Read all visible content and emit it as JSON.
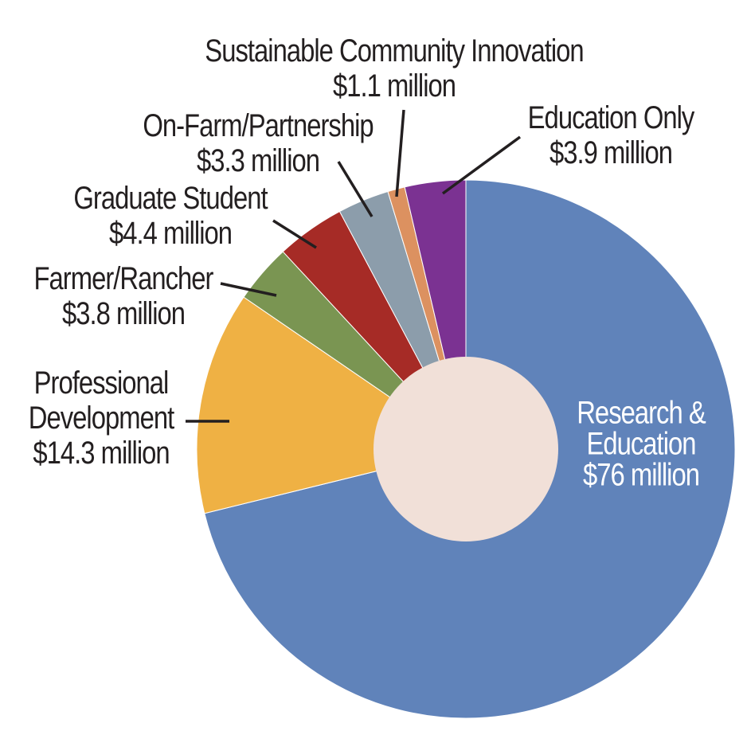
{
  "chart_data": {
    "type": "pie",
    "subtype": "donut",
    "title": "",
    "legend": "none",
    "background_color": "#ffffff",
    "text_color": "#231f20",
    "inside_label_text_color": "#ffffff",
    "donut_hole_color": "#f1e0d8",
    "leader_line_color": "#231f20",
    "start_angle_deg": 0,
    "direction": "clockwise",
    "value_unit": "million",
    "slices": [
      {
        "id": "research-education",
        "label": "Research & Education",
        "label_lines": [
          "Research &",
          "Education"
        ],
        "value": 76,
        "value_label": "$76 million",
        "color": "#6083ba",
        "label_placement": "inside"
      },
      {
        "id": "professional-development",
        "label": "Professional Development",
        "label_lines": [
          "Professional",
          "Development"
        ],
        "value": 14.3,
        "value_label": "$14.3 million",
        "color": "#efb144",
        "label_placement": "outside"
      },
      {
        "id": "farmer-rancher",
        "label": "Farmer/Rancher",
        "label_lines": [
          "Farmer/Rancher"
        ],
        "value": 3.8,
        "value_label": "$3.8 million",
        "color": "#7a9552",
        "label_placement": "outside"
      },
      {
        "id": "graduate-student",
        "label": "Graduate Student",
        "label_lines": [
          "Graduate Student"
        ],
        "value": 4.4,
        "value_label": "$4.4 million",
        "color": "#a62b26",
        "label_placement": "outside"
      },
      {
        "id": "on-farm-partnership",
        "label": "On-Farm/Partnership",
        "label_lines": [
          "On-Farm/Partnership"
        ],
        "value": 3.3,
        "value_label": "$3.3 million",
        "color": "#8c9dab",
        "label_placement": "outside"
      },
      {
        "id": "sustainable-community-innovation",
        "label": "Sustainable Community Innovation",
        "label_lines": [
          "Sustainable Community Innovation"
        ],
        "value": 1.1,
        "value_label": "$1.1 million",
        "color": "#dc9160",
        "label_placement": "outside"
      },
      {
        "id": "education-only",
        "label": "Education Only",
        "label_lines": [
          "Education Only"
        ],
        "value": 3.9,
        "value_label": "$3.9 million",
        "color": "#7b3292",
        "label_placement": "outside"
      }
    ]
  }
}
